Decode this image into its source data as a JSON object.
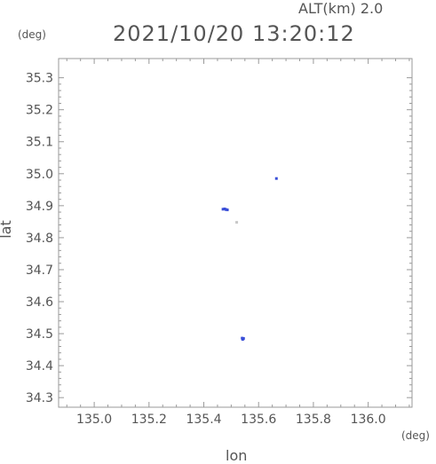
{
  "header": {
    "alt_label": "ALT(km) 2.0",
    "datetime": "2021/10/20 13:20:12"
  },
  "chart_data": {
    "type": "scatter",
    "title": "2021/10/20 13:20:12",
    "xlabel": "lon",
    "ylabel": "lat",
    "x_unit": "(deg)",
    "y_unit": "(deg)",
    "xlim": [
      134.87,
      136.16
    ],
    "ylim": [
      34.27,
      35.36
    ],
    "x_ticks": [
      135.0,
      135.2,
      135.4,
      135.6,
      135.8,
      136.0
    ],
    "x_tick_labels": [
      "135.0",
      "135.2",
      "135.4",
      "135.6",
      "135.8",
      "136.0"
    ],
    "y_ticks": [
      34.3,
      34.4,
      34.5,
      34.6,
      34.7,
      34.8,
      34.9,
      35.0,
      35.1,
      35.2,
      35.3
    ],
    "y_tick_labels": [
      "34.3",
      "34.4",
      "34.5",
      "34.6",
      "34.7",
      "34.8",
      "34.9",
      "35.0",
      "35.1",
      "35.2",
      "35.3"
    ],
    "grid": false,
    "series": [
      {
        "color": "#3a4fd8",
        "points": [
          {
            "x": 135.665,
            "y": 34.985
          },
          {
            "x": 135.47,
            "y": 34.889
          },
          {
            "x": 135.476,
            "y": 34.89
          },
          {
            "x": 135.481,
            "y": 34.888
          },
          {
            "x": 135.486,
            "y": 34.887
          },
          {
            "x": 135.54,
            "y": 34.486
          },
          {
            "x": 135.545,
            "y": 34.485
          },
          {
            "x": 135.542,
            "y": 34.482
          }
        ]
      },
      {
        "color": "#c8c8c8",
        "points": [
          {
            "x": 135.52,
            "y": 34.848
          }
        ]
      }
    ]
  }
}
